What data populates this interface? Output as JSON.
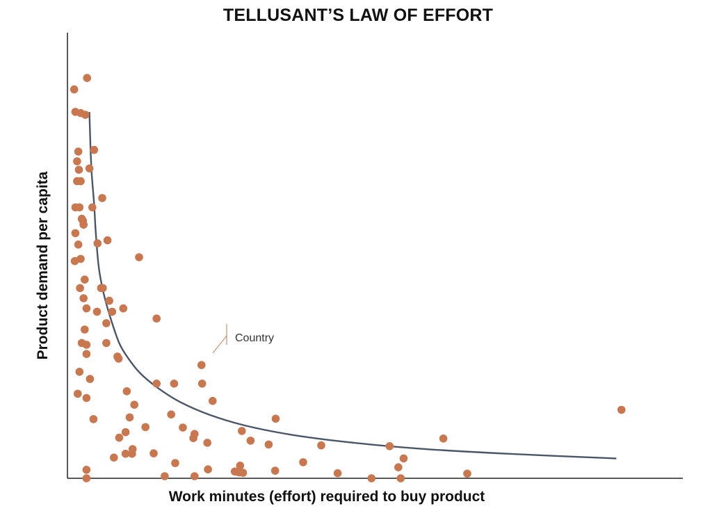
{
  "chart_data": {
    "type": "scatter",
    "title": "TELLUSANT’S LAW OF EFFORT",
    "xlabel": "Work minutes (effort) required to buy product",
    "ylabel": "Product demand per capita",
    "xlim": [
      0,
      100
    ],
    "ylim": [
      0,
      100
    ],
    "grid": false,
    "ticks_shown": false,
    "point_color": "#C8774F",
    "curve_color": "#4A5568",
    "axis_color": "#222222",
    "series": [
      {
        "type": "scatter",
        "points": [
          {
            "x": 0.8,
            "y": 92.0
          },
          {
            "x": 3.0,
            "y": 94.7
          },
          {
            "x": 1.0,
            "y": 86.7
          },
          {
            "x": 1.9,
            "y": 86.4
          },
          {
            "x": 2.7,
            "y": 86.0
          },
          {
            "x": 1.5,
            "y": 77.3
          },
          {
            "x": 4.2,
            "y": 77.7
          },
          {
            "x": 1.3,
            "y": 75.0
          },
          {
            "x": 3.4,
            "y": 73.3
          },
          {
            "x": 1.6,
            "y": 73.0
          },
          {
            "x": 1.3,
            "y": 70.3
          },
          {
            "x": 1.9,
            "y": 70.3
          },
          {
            "x": 5.6,
            "y": 66.3
          },
          {
            "x": 1.0,
            "y": 64.1
          },
          {
            "x": 1.7,
            "y": 64.1
          },
          {
            "x": 3.9,
            "y": 64.1
          },
          {
            "x": 2.1,
            "y": 61.4
          },
          {
            "x": 2.3,
            "y": 60.9
          },
          {
            "x": 2.4,
            "y": 60.0
          },
          {
            "x": 1.0,
            "y": 58.0
          },
          {
            "x": 6.5,
            "y": 56.3
          },
          {
            "x": 4.8,
            "y": 55.6
          },
          {
            "x": 1.5,
            "y": 55.3
          },
          {
            "x": 1.9,
            "y": 51.9
          },
          {
            "x": 0.9,
            "y": 51.4
          },
          {
            "x": 11.9,
            "y": 52.3
          },
          {
            "x": 2.6,
            "y": 47.0
          },
          {
            "x": 1.8,
            "y": 45.0
          },
          {
            "x": 5.4,
            "y": 45.0
          },
          {
            "x": 5.7,
            "y": 45.0
          },
          {
            "x": 2.4,
            "y": 42.6
          },
          {
            "x": 6.8,
            "y": 42.0
          },
          {
            "x": 2.9,
            "y": 40.2
          },
          {
            "x": 9.2,
            "y": 40.2
          },
          {
            "x": 4.7,
            "y": 39.4
          },
          {
            "x": 7.3,
            "y": 39.4
          },
          {
            "x": 14.9,
            "y": 37.8
          },
          {
            "x": 6.3,
            "y": 36.7
          },
          {
            "x": 2.6,
            "y": 35.2
          },
          {
            "x": 2.1,
            "y": 32.0
          },
          {
            "x": 6.3,
            "y": 32.0
          },
          {
            "x": 2.9,
            "y": 31.6
          },
          {
            "x": 2.9,
            "y": 29.4
          },
          {
            "x": 8.2,
            "y": 28.8
          },
          {
            "x": 8.4,
            "y": 28.3
          },
          {
            "x": 22.6,
            "y": 26.8
          },
          {
            "x": 1.7,
            "y": 25.2
          },
          {
            "x": 3.5,
            "y": 23.5
          },
          {
            "x": 14.9,
            "y": 22.4
          },
          {
            "x": 17.9,
            "y": 22.4
          },
          {
            "x": 22.7,
            "y": 22.4
          },
          {
            "x": 9.8,
            "y": 20.6
          },
          {
            "x": 1.4,
            "y": 20.0
          },
          {
            "x": 2.9,
            "y": 19.0
          },
          {
            "x": 24.5,
            "y": 18.3
          },
          {
            "x": 11.1,
            "y": 17.4
          },
          {
            "x": 17.4,
            "y": 15.1
          },
          {
            "x": 10.3,
            "y": 14.4
          },
          {
            "x": 4.1,
            "y": 14.0
          },
          {
            "x": 35.3,
            "y": 14.1
          },
          {
            "x": 94.5,
            "y": 16.2
          },
          {
            "x": 13.0,
            "y": 12.1
          },
          {
            "x": 19.4,
            "y": 12.0
          },
          {
            "x": 9.6,
            "y": 10.9
          },
          {
            "x": 21.4,
            "y": 10.5
          },
          {
            "x": 29.5,
            "y": 11.2
          },
          {
            "x": 21.2,
            "y": 9.5
          },
          {
            "x": 8.5,
            "y": 9.6
          },
          {
            "x": 31.0,
            "y": 8.9
          },
          {
            "x": 23.6,
            "y": 8.4
          },
          {
            "x": 64.0,
            "y": 9.4
          },
          {
            "x": 34.1,
            "y": 8.0
          },
          {
            "x": 43.1,
            "y": 7.8
          },
          {
            "x": 54.8,
            "y": 7.6
          },
          {
            "x": 10.8,
            "y": 6.9
          },
          {
            "x": 10.7,
            "y": 5.8
          },
          {
            "x": 9.6,
            "y": 5.8
          },
          {
            "x": 14.4,
            "y": 5.9
          },
          {
            "x": 7.6,
            "y": 4.9
          },
          {
            "x": 57.2,
            "y": 4.7
          },
          {
            "x": 18.1,
            "y": 3.6
          },
          {
            "x": 40.0,
            "y": 3.8
          },
          {
            "x": 29.2,
            "y": 3.0
          },
          {
            "x": 56.3,
            "y": 2.6
          },
          {
            "x": 2.9,
            "y": 2.0
          },
          {
            "x": 23.7,
            "y": 2.1
          },
          {
            "x": 35.2,
            "y": 1.8
          },
          {
            "x": 28.3,
            "y": 1.6
          },
          {
            "x": 29.0,
            "y": 1.4
          },
          {
            "x": 29.7,
            "y": 1.3
          },
          {
            "x": 45.9,
            "y": 1.2
          },
          {
            "x": 68.1,
            "y": 1.1
          },
          {
            "x": 16.3,
            "y": 0.5
          },
          {
            "x": 21.4,
            "y": 0.5
          },
          {
            "x": 2.9,
            "y": 0.0
          },
          {
            "x": 51.7,
            "y": 0.0
          },
          {
            "x": 56.7,
            "y": 0.0
          }
        ]
      },
      {
        "type": "line",
        "points": [
          {
            "x": 3.4,
            "y": 86.5
          },
          {
            "x": 3.6,
            "y": 78.0
          },
          {
            "x": 3.8,
            "y": 72.0
          },
          {
            "x": 4.2,
            "y": 65.0
          },
          {
            "x": 4.5,
            "y": 58.0
          },
          {
            "x": 5.0,
            "y": 50.0
          },
          {
            "x": 5.8,
            "y": 44.0
          },
          {
            "x": 7.0,
            "y": 38.0
          },
          {
            "x": 8.5,
            "y": 32.0
          },
          {
            "x": 10.0,
            "y": 28.5
          },
          {
            "x": 12.0,
            "y": 25.0
          },
          {
            "x": 15.0,
            "y": 21.5
          },
          {
            "x": 19.0,
            "y": 18.0
          },
          {
            "x": 24.0,
            "y": 15.0
          },
          {
            "x": 30.0,
            "y": 12.5
          },
          {
            "x": 38.0,
            "y": 10.3
          },
          {
            "x": 48.0,
            "y": 8.5
          },
          {
            "x": 60.0,
            "y": 7.0
          },
          {
            "x": 75.0,
            "y": 5.8
          },
          {
            "x": 93.5,
            "y": 4.7
          }
        ]
      }
    ],
    "annotation": {
      "text": "Country",
      "x": 13.4,
      "y": 28.8,
      "target_x": 24.0,
      "target_y": 33.5
    }
  }
}
